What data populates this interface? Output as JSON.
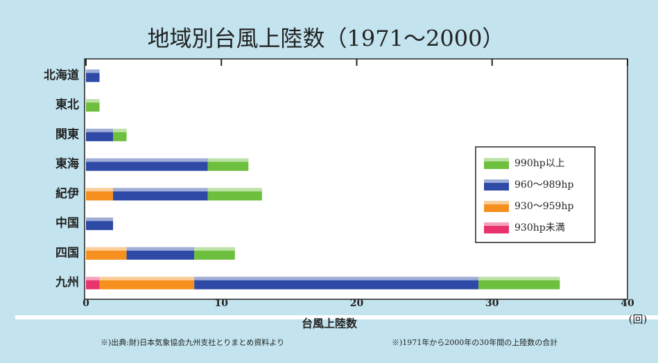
{
  "chart_data": {
    "type": "stacked-barh",
    "title": "地域別台風上陸数（1971〜2000）",
    "categories": [
      "北海道",
      "東北",
      "関東",
      "東海",
      "紀伊",
      "中国",
      "四国",
      "九州"
    ],
    "series": [
      {
        "name": "930hp未満",
        "color": "#e8336e",
        "values": [
          0,
          0,
          0,
          0,
          0,
          0,
          0,
          1
        ]
      },
      {
        "name": "930〜959hp",
        "color": "#f5901e",
        "values": [
          0,
          0,
          0,
          0,
          2,
          0,
          3,
          7
        ]
      },
      {
        "name": "960〜989hp",
        "color": "#2e4aa6",
        "values": [
          1,
          0,
          2,
          9,
          7,
          2,
          5,
          21
        ]
      },
      {
        "name": "990hp以上",
        "color": "#6dbf3e",
        "values": [
          0,
          1,
          1,
          3,
          4,
          0,
          3,
          6
        ]
      }
    ],
    "xlim": [
      0,
      40
    ],
    "xticks": [
      0,
      10,
      20,
      30,
      40
    ],
    "xlabel": "台風上陸数",
    "xunit": "(回)",
    "notes": [
      "※)出典:財)日本気象協会九州支社とりまとめ資料より",
      "※)1971年から2000年の30年間の上陸数の合計"
    ]
  }
}
